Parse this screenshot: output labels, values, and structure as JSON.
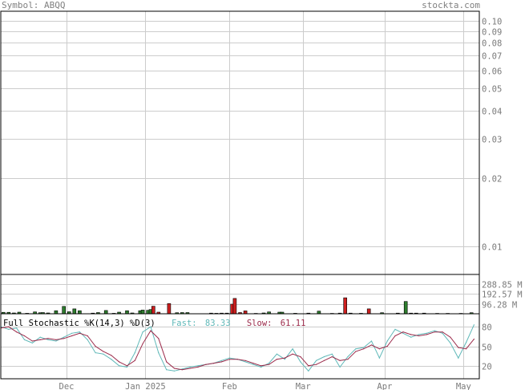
{
  "header": {
    "symbol_label": "Symbol: ABQQ",
    "site": "stockta.com"
  },
  "colors": {
    "background": "#ffffff",
    "grid": "#cccccc",
    "frame": "#000000",
    "axis_text": "#7a7a7a",
    "volume_up": "#2e7d2e",
    "volume_down": "#cc1f1f",
    "fast_line": "#5fb8b8",
    "slow_line": "#9b2a4a"
  },
  "chart_data": [
    {
      "type": "line",
      "name": "price",
      "yscale": "log",
      "yticks": [
        0.1,
        0.09,
        0.08,
        0.07,
        0.06,
        0.05,
        0.04,
        0.03,
        0.02,
        0.01
      ],
      "ytick_labels": [
        "0.10",
        "0.09",
        "0.08",
        "0.07",
        "0.06",
        "0.05",
        "0.04",
        "0.03",
        "0.02",
        "0.01"
      ],
      "ylim": [
        0.0075,
        0.11
      ],
      "x_labels": [
        "Dec",
        "Jan 2025",
        "Feb",
        "Mar",
        "Apr",
        "May"
      ],
      "x_label_days": [
        25,
        55,
        87,
        115,
        146,
        176
      ],
      "x_range_days": [
        0,
        182
      ],
      "grid": true,
      "series": []
    },
    {
      "type": "bar",
      "name": "volume",
      "yticks": [
        288.85,
        192.57,
        96.28
      ],
      "ytick_labels": [
        "288.85 M",
        "192.57 M",
        "96.28 M"
      ],
      "ylim": [
        0,
        385
      ],
      "bars": [
        {
          "day": 1,
          "value": 14,
          "dir": "up"
        },
        {
          "day": 3,
          "value": 14,
          "dir": "up"
        },
        {
          "day": 5,
          "value": 8,
          "dir": "up"
        },
        {
          "day": 7,
          "value": 16,
          "dir": "up"
        },
        {
          "day": 10,
          "value": 5,
          "dir": "up"
        },
        {
          "day": 13,
          "value": 18,
          "dir": "up"
        },
        {
          "day": 15,
          "value": 10,
          "dir": "up"
        },
        {
          "day": 16,
          "value": 12,
          "dir": "up"
        },
        {
          "day": 18,
          "value": 8,
          "dir": "up"
        },
        {
          "day": 21,
          "value": 30,
          "dir": "up"
        },
        {
          "day": 24,
          "value": 72,
          "dir": "up"
        },
        {
          "day": 26,
          "value": 20,
          "dir": "up"
        },
        {
          "day": 28,
          "value": 48,
          "dir": "up"
        },
        {
          "day": 30,
          "value": 30,
          "dir": "up"
        },
        {
          "day": 35,
          "value": 6,
          "dir": "up"
        },
        {
          "day": 37,
          "value": 12,
          "dir": "up"
        },
        {
          "day": 40,
          "value": 32,
          "dir": "up"
        },
        {
          "day": 43,
          "value": 5,
          "dir": "up"
        },
        {
          "day": 45,
          "value": 16,
          "dir": "up"
        },
        {
          "day": 48,
          "value": 30,
          "dir": "up"
        },
        {
          "day": 50,
          "value": 8,
          "dir": "up"
        },
        {
          "day": 53,
          "value": 30,
          "dir": "up"
        },
        {
          "day": 54,
          "value": 36,
          "dir": "up"
        },
        {
          "day": 56,
          "value": 34,
          "dir": "up"
        },
        {
          "day": 57,
          "value": 42,
          "dir": "up"
        },
        {
          "day": 58,
          "value": 74,
          "dir": "down"
        },
        {
          "day": 60,
          "value": 16,
          "dir": "down"
        },
        {
          "day": 64,
          "value": 100,
          "dir": "down"
        },
        {
          "day": 67,
          "value": 10,
          "dir": "up"
        },
        {
          "day": 69,
          "value": 12,
          "dir": "up"
        },
        {
          "day": 71,
          "value": 12,
          "dir": "up"
        },
        {
          "day": 80,
          "value": 6,
          "dir": "up"
        },
        {
          "day": 82,
          "value": 5,
          "dir": "up"
        },
        {
          "day": 84,
          "value": 6,
          "dir": "up"
        },
        {
          "day": 86,
          "value": 6,
          "dir": "up"
        },
        {
          "day": 88,
          "value": 94,
          "dir": "down"
        },
        {
          "day": 89,
          "value": 150,
          "dir": "down"
        },
        {
          "day": 91,
          "value": 12,
          "dir": "down"
        },
        {
          "day": 93,
          "value": 28,
          "dir": "down"
        },
        {
          "day": 97,
          "value": 4,
          "dir": "up"
        },
        {
          "day": 100,
          "value": 8,
          "dir": "up"
        },
        {
          "day": 102,
          "value": 18,
          "dir": "up"
        },
        {
          "day": 106,
          "value": 16,
          "dir": "up"
        },
        {
          "day": 107,
          "value": 16,
          "dir": "up"
        },
        {
          "day": 112,
          "value": 5,
          "dir": "up"
        },
        {
          "day": 117,
          "value": 6,
          "dir": "up"
        },
        {
          "day": 121,
          "value": 26,
          "dir": "up"
        },
        {
          "day": 126,
          "value": 4,
          "dir": "up"
        },
        {
          "day": 129,
          "value": 6,
          "dir": "up"
        },
        {
          "day": 131,
          "value": 156,
          "dir": "down"
        },
        {
          "day": 133,
          "value": 6,
          "dir": "up"
        },
        {
          "day": 137,
          "value": 5,
          "dir": "up"
        },
        {
          "day": 140,
          "value": 48,
          "dir": "down"
        },
        {
          "day": 145,
          "value": 10,
          "dir": "up"
        },
        {
          "day": 151,
          "value": 6,
          "dir": "up"
        },
        {
          "day": 154,
          "value": 120,
          "dir": "up"
        },
        {
          "day": 156,
          "value": 6,
          "dir": "up"
        },
        {
          "day": 158,
          "value": 6,
          "dir": "up"
        },
        {
          "day": 161,
          "value": 6,
          "dir": "up"
        },
        {
          "day": 166,
          "value": 4,
          "dir": "up"
        },
        {
          "day": 170,
          "value": 4,
          "dir": "up"
        },
        {
          "day": 175,
          "value": 4,
          "dir": "up"
        },
        {
          "day": 179,
          "value": 10,
          "dir": "up"
        }
      ]
    },
    {
      "type": "line",
      "name": "full-stochastic",
      "title": "Full Stochastic %K(14,3) %D(3)",
      "fast_label": "Fast:",
      "fast_value": "83.33",
      "slow_label": "Slow:",
      "slow_value": "61.11",
      "yticks": [
        80,
        50,
        20
      ],
      "ytick_labels": [
        "80",
        "50",
        "20"
      ],
      "ylim": [
        0,
        100
      ],
      "series": [
        {
          "name": "Fast",
          "x": [
            0,
            3,
            6,
            9,
            12,
            15,
            18,
            21,
            24,
            27,
            30,
            33,
            36,
            39,
            42,
            45,
            48,
            51,
            54,
            57,
            60,
            63,
            66,
            69,
            72,
            75,
            78,
            81,
            84,
            87,
            90,
            93,
            96,
            99,
            102,
            105,
            108,
            111,
            114,
            117,
            120,
            123,
            126,
            129,
            132,
            135,
            138,
            141,
            144,
            147,
            150,
            153,
            156,
            159,
            162,
            165,
            168,
            171,
            174,
            177,
            180
          ],
          "values": [
            80,
            76,
            78,
            60,
            55,
            64,
            60,
            58,
            64,
            70,
            72,
            60,
            40,
            38,
            30,
            20,
            18,
            40,
            72,
            80,
            40,
            14,
            12,
            15,
            18,
            20,
            22,
            24,
            28,
            32,
            30,
            26,
            22,
            18,
            24,
            38,
            30,
            46,
            26,
            12,
            28,
            34,
            38,
            18,
            34,
            46,
            48,
            58,
            32,
            58,
            76,
            70,
            64,
            68,
            70,
            74,
            70,
            55,
            32,
            56,
            83
          ]
        },
        {
          "name": "Slow",
          "x": [
            0,
            3,
            6,
            9,
            12,
            15,
            18,
            21,
            24,
            27,
            30,
            33,
            36,
            39,
            42,
            45,
            48,
            51,
            54,
            57,
            60,
            63,
            66,
            69,
            72,
            75,
            78,
            81,
            84,
            87,
            90,
            93,
            96,
            99,
            102,
            105,
            108,
            111,
            114,
            117,
            120,
            123,
            126,
            129,
            132,
            135,
            138,
            141,
            144,
            147,
            150,
            153,
            156,
            159,
            162,
            165,
            168,
            171,
            174,
            177,
            180
          ],
          "values": [
            78,
            80,
            72,
            66,
            58,
            60,
            62,
            60,
            62,
            66,
            70,
            66,
            50,
            42,
            36,
            26,
            20,
            28,
            54,
            74,
            62,
            26,
            16,
            14,
            16,
            18,
            22,
            24,
            26,
            30,
            30,
            28,
            24,
            20,
            22,
            30,
            32,
            38,
            34,
            20,
            22,
            28,
            34,
            28,
            30,
            42,
            46,
            52,
            46,
            50,
            66,
            72,
            68,
            66,
            68,
            72,
            72,
            64,
            48,
            46,
            61
          ]
        }
      ]
    }
  ]
}
